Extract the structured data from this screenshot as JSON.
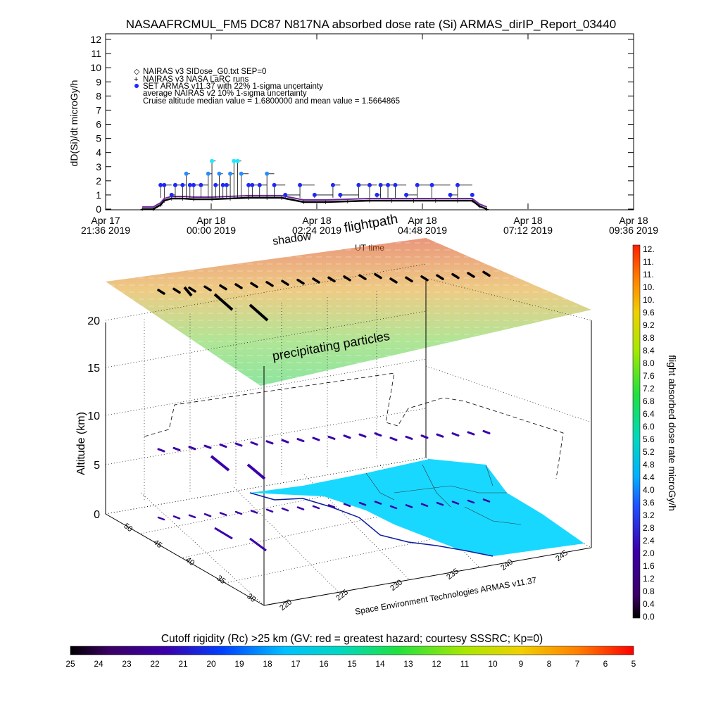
{
  "figure": {
    "title": "NASAAFRCMUL_FM5 DC87 N817NA absorbed dose rate (Si) ARMAS_dirIP_Report_03440",
    "credit": "Space Environment Technologies ARMAS v11.37"
  },
  "chart_data": [
    {
      "type": "scatter",
      "name": "time-series",
      "title": "",
      "ylabel": "dD(Si)/dt microGy/h",
      "xlabel": "UT time",
      "ylim": [
        0,
        12
      ],
      "y_ticks": [
        "0",
        "1",
        "2",
        "3",
        "4",
        "5",
        "6",
        "7",
        "8",
        "9",
        "10",
        "11",
        "12"
      ],
      "x_ticks": [
        {
          "top": "Apr 17",
          "bottom": "21:36 2019"
        },
        {
          "top": "Apr 18",
          "bottom": "00:00 2019"
        },
        {
          "top": "Apr 18",
          "bottom": "02:24 2019"
        },
        {
          "top": "Apr 18",
          "bottom": "04:48 2019"
        },
        {
          "top": "Apr 18",
          "bottom": "07:12 2019"
        },
        {
          "top": "Apr 18",
          "bottom": "09:36 2019"
        }
      ],
      "legend": [
        "NAIRAS v3 SIDose_G0.txt SEP=0",
        "NAIRAS v3 NASA LaRC runs",
        "SET ARMAS v11.37 with 22% 1-sigma uncertainty",
        "average NAIRAS v2 10% 1-sigma uncertainty",
        "Cruise altitude median value = 1.6800000 and mean value = 1.5664865"
      ],
      "x_range_hours": [
        -2.4,
        12.0
      ],
      "series": [
        {
          "name": "NAIRAS v3 NASA LaRC runs",
          "x": [
            -1.4,
            -1.1,
            -0.9,
            -0.8,
            -0.6,
            -0.3,
            0.0,
            0.5,
            1.0,
            1.5,
            2.0,
            2.4,
            3.0,
            3.6,
            4.2,
            4.8,
            5.4,
            6.0,
            6.6,
            7.2,
            7.6,
            7.8,
            8.0
          ],
          "values": [
            0.0,
            0.0,
            0.3,
            0.6,
            0.75,
            0.75,
            0.7,
            0.7,
            0.75,
            0.8,
            0.8,
            0.8,
            0.5,
            0.5,
            0.55,
            0.6,
            0.6,
            0.6,
            0.6,
            0.6,
            0.6,
            0.2,
            0.0
          ]
        },
        {
          "name": "SET ARMAS v11.37 with 22% 1-sigma uncertainty",
          "x": [
            -0.9,
            -0.8,
            -0.6,
            -0.5,
            -0.3,
            -0.2,
            -0.1,
            0.0,
            0.2,
            0.4,
            0.5,
            0.6,
            0.7,
            0.8,
            0.9,
            1.0,
            1.1,
            1.2,
            1.3,
            1.5,
            1.6,
            1.8,
            2.0,
            2.2,
            2.5,
            2.9,
            3.3,
            3.8,
            4.0,
            4.5,
            4.8,
            5.0,
            5.1,
            5.3,
            5.5,
            5.8,
            6.1,
            6.5,
            7.0,
            7.2,
            7.6
          ],
          "values": [
            1.7,
            1.7,
            1.0,
            1.7,
            1.7,
            2.5,
            1.7,
            1.7,
            1.7,
            2.5,
            3.4,
            1.7,
            2.5,
            1.7,
            1.7,
            2.5,
            3.4,
            3.4,
            2.5,
            1.7,
            1.7,
            1.7,
            2.5,
            1.7,
            1.0,
            1.7,
            1.0,
            1.7,
            1.0,
            1.7,
            1.7,
            1.0,
            1.7,
            1.7,
            1.7,
            1.0,
            1.7,
            1.7,
            1.0,
            1.7,
            1.0
          ]
        }
      ]
    },
    {
      "type": "heatmap",
      "name": "3d-flight-view",
      "zlabel": "Altitude (km)",
      "z_ticks": [
        "0",
        "5",
        "10",
        "15",
        "20"
      ],
      "lat_ticks": [
        "30",
        "35",
        "40",
        "45",
        "50"
      ],
      "lon_ticks": [
        "220",
        "225",
        "230",
        "235",
        "240",
        "245"
      ],
      "annotations": [
        "shadow",
        "flightpath",
        "precipitating particles"
      ]
    },
    {
      "type": "heatmap",
      "name": "dose-colorbar",
      "label": "flight absorbed dose rate microGy/h",
      "ticks": [
        "0.0",
        "0.4",
        "0.8",
        "1.2",
        "1.6",
        "2.0",
        "2.4",
        "2.8",
        "3.2",
        "3.6",
        "4.0",
        "4.4",
        "4.8",
        "5.2",
        "5.6",
        "6.0",
        "6.4",
        "6.8",
        "7.2",
        "7.6",
        "8.0",
        "8.4",
        "8.8",
        "9.2",
        "9.6",
        "10.",
        "10.",
        "11.",
        "11.",
        "12."
      ]
    },
    {
      "type": "heatmap",
      "name": "cutoff-colorbar",
      "title": "Cutoff rigidity (Rc) >25 km (GV: red = greatest hazard; courtesy SSSRC; Kp=0)",
      "ticks": [
        "25",
        "24",
        "23",
        "22",
        "21",
        "20",
        "19",
        "18",
        "17",
        "16",
        "15",
        "14",
        "13",
        "12",
        "11",
        "10",
        "9",
        "8",
        "7",
        "6",
        "5"
      ]
    }
  ],
  "colors": {
    "rainbow": [
      "#000000",
      "#3b0064",
      "#3a00aa",
      "#2050ff",
      "#00b0ff",
      "#00d8c0",
      "#20e040",
      "#a8e800",
      "#f0d000",
      "#ff8000",
      "#ff2000"
    ],
    "cutoff": [
      "#000000",
      "#3b0064",
      "#3a00aa",
      "#0040ff",
      "#00c0ff",
      "#00d8c0",
      "#20e040",
      "#a8e800",
      "#f0d000",
      "#ff8000",
      "#ff0000"
    ],
    "nairas": "#000000",
    "armas": "#1e28ff",
    "armas_hi": "#20e8ff",
    "avg": "#6a2a9a",
    "map": "#18d8ff"
  }
}
